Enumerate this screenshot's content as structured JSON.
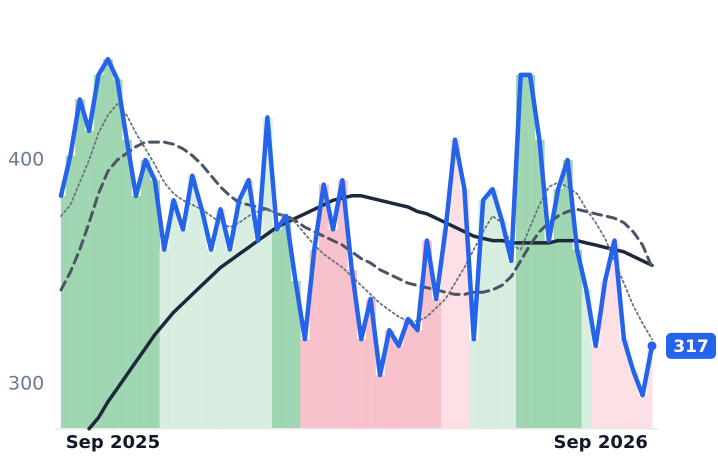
{
  "chart_data": {
    "type": "line",
    "categories": [
      null,
      null,
      null,
      null,
      null,
      "Sep 2025",
      null,
      null,
      null,
      null,
      null,
      null,
      null,
      null,
      null,
      null,
      null,
      null,
      null,
      null,
      null,
      null,
      null,
      null,
      null,
      null,
      null,
      null,
      null,
      null,
      null,
      null,
      null,
      null,
      null,
      null,
      null,
      null,
      null,
      null,
      null,
      null,
      null,
      null,
      null,
      null,
      null,
      null,
      null,
      null,
      null,
      null,
      null,
      null,
      null,
      null,
      null,
      "Sep 2026",
      null,
      null,
      null,
      null,
      null,
      null
    ],
    "series": [
      {
        "color": "#2563eb",
        "style": "solid",
        "values": [
          384,
          402,
          427,
          413,
          438,
          445,
          436,
          409,
          384,
          400,
          391,
          360,
          382,
          369,
          393,
          378,
          360,
          378,
          360,
          382,
          391,
          364,
          419,
          369,
          375,
          346,
          320,
          360,
          389,
          369,
          391,
          351,
          320,
          338,
          304,
          324,
          317,
          329,
          324,
          364,
          338,
          369,
          409,
          387,
          320,
          382,
          387,
          373,
          355,
          438,
          438,
          409,
          364,
          387,
          400,
          360,
          342,
          317,
          346,
          364,
          320,
          306,
          295,
          317
        ]
      },
      {
        "color": "#6b7280",
        "style": "dotted",
        "values": [
          375,
          380,
          390,
          400,
          412,
          420,
          425,
          420,
          412,
          405,
          398,
          390,
          385,
          382,
          380,
          378,
          375,
          372,
          370,
          372,
          375,
          377,
          378,
          376,
          375,
          372,
          367,
          362,
          358,
          355,
          352,
          348,
          344,
          340,
          336,
          333,
          330,
          328,
          328,
          330,
          334,
          338,
          345,
          352,
          360,
          368,
          375,
          372,
          362,
          360,
          370,
          380,
          388,
          390,
          388,
          385,
          378,
          372,
          365,
          355,
          345,
          335,
          327,
          320
        ]
      },
      {
        "color": "#4b5563",
        "style": "dashed",
        "values": [
          342,
          350,
          360,
          372,
          385,
          395,
          400,
          403,
          406,
          408,
          408,
          408,
          407,
          405,
          402,
          398,
          393,
          388,
          384,
          381,
          380,
          379,
          378,
          376,
          375,
          373,
          370,
          368,
          366,
          364,
          362,
          359,
          356,
          354,
          351,
          349,
          347,
          345,
          344,
          343,
          342,
          341,
          340,
          340,
          341,
          341,
          342,
          344,
          348,
          355,
          362,
          368,
          372,
          375,
          377,
          378,
          377,
          376,
          375,
          374,
          372,
          368,
          362,
          352
        ]
      },
      {
        "color": "#1e293b",
        "style": "solid",
        "values": [
          null,
          null,
          null,
          280,
          285,
          292,
          298,
          304,
          310,
          316,
          322,
          327,
          332,
          336,
          340,
          344,
          348,
          352,
          355,
          358,
          361,
          364,
          367,
          370,
          372,
          374,
          376,
          378,
          380,
          382,
          383,
          384,
          384,
          383,
          382,
          381,
          380,
          379,
          377,
          376,
          374,
          372,
          370,
          368,
          366,
          365,
          364,
          364,
          363,
          363,
          363,
          363,
          363,
          364,
          364,
          364,
          363,
          362,
          361,
          360,
          359,
          357,
          355,
          353
        ]
      }
    ],
    "fill_colors": [
      "#8fd0a5",
      "#8fd0a5",
      "#8fd0a5",
      "#8fd0a5",
      "#8fd0a5",
      "#8fd0a5",
      "#8fd0a5",
      "#8fd0a5",
      "#8fd0a5",
      "#8fd0a5",
      "#8fd0a5",
      "#d0ebdb",
      "#d0ebdb",
      "#d0ebdb",
      "#d0ebdb",
      "#d0ebdb",
      "#d0ebdb",
      "#d0ebdb",
      "#d0ebdb",
      "#d0ebdb",
      "#d0ebdb",
      "#d0ebdb",
      "#d0ebdb",
      "#8fd0a5",
      "#8fd0a5",
      "#8fd0a5",
      "#f7b7c4",
      "#f7b7c4",
      "#f7b7c4",
      "#f7b7c4",
      "#f7b7c4",
      "#f7b7c4",
      "#f7b7c4",
      "#f7b7c4",
      "#f7b7c4",
      "#f7b7c4",
      "#f7b7c4",
      "#f7b7c4",
      "#f7b7c4",
      "#f7b7c4",
      "#f7b7c4",
      "#fbdae0",
      "#fbdae0",
      "#fbdae0",
      "#d0ebdb",
      "#d0ebdb",
      "#d0ebdb",
      "#d0ebdb",
      "#d0ebdb",
      "#8fd0a5",
      "#8fd0a5",
      "#8fd0a5",
      "#8fd0a5",
      "#8fd0a5",
      "#8fd0a5",
      "#8fd0a5",
      "#d0ebdb",
      "#fbdae0",
      "#fbdae0",
      "#fbdae0",
      "#fbdae0",
      "#fbdae0",
      "#fbdae0",
      "#fbdae0"
    ],
    "ylim": [
      280,
      460
    ],
    "yticks": [
      300,
      400
    ],
    "grid": false
  }
}
